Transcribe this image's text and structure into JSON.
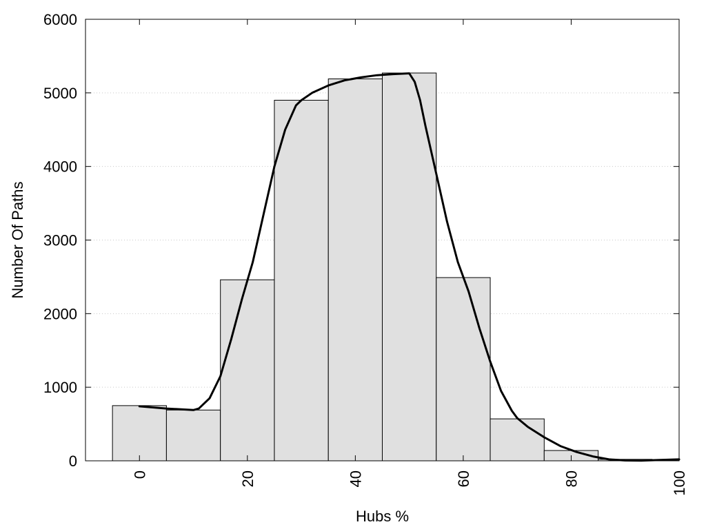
{
  "chart_data": {
    "type": "bar",
    "title": "",
    "xlabel": "Hubs %",
    "ylabel": "Number Of Paths",
    "xlim": [
      -10,
      100
    ],
    "ylim": [
      0,
      6000
    ],
    "x_ticks": [
      0,
      20,
      40,
      60,
      80,
      100
    ],
    "y_ticks": [
      0,
      1000,
      2000,
      3000,
      4000,
      5000,
      6000
    ],
    "grid": "horizontal dotted",
    "legend": "none",
    "bin_width": 10,
    "bins": [
      {
        "center": 0,
        "value": 750
      },
      {
        "center": 10,
        "value": 690
      },
      {
        "center": 20,
        "value": 2460
      },
      {
        "center": 30,
        "value": 4900
      },
      {
        "center": 40,
        "value": 5190
      },
      {
        "center": 50,
        "value": 5270
      },
      {
        "center": 60,
        "value": 2490
      },
      {
        "center": 70,
        "value": 570
      },
      {
        "center": 80,
        "value": 140
      },
      {
        "center": 90,
        "value": 20
      }
    ],
    "curve": {
      "x": [
        0,
        5,
        10,
        11,
        13,
        15,
        17,
        19,
        21,
        23,
        25,
        27,
        29,
        30,
        32,
        35,
        38,
        41,
        44,
        47,
        50,
        51,
        52,
        53,
        55,
        57,
        59,
        61,
        63,
        65,
        67,
        69,
        70,
        72,
        75,
        78,
        81,
        84,
        87,
        90,
        93,
        96,
        100
      ],
      "y": [
        740,
        710,
        690,
        710,
        850,
        1150,
        1650,
        2200,
        2700,
        3350,
        4000,
        4500,
        4830,
        4900,
        5000,
        5100,
        5170,
        5210,
        5240,
        5255,
        5265,
        5150,
        4900,
        4550,
        3900,
        3250,
        2700,
        2300,
        1800,
        1350,
        950,
        680,
        580,
        460,
        320,
        200,
        120,
        60,
        20,
        5,
        2,
        10,
        20
      ]
    },
    "bar_fill": "#e0e0e0",
    "bar_stroke": "#000000",
    "curve_color": "#000000"
  }
}
